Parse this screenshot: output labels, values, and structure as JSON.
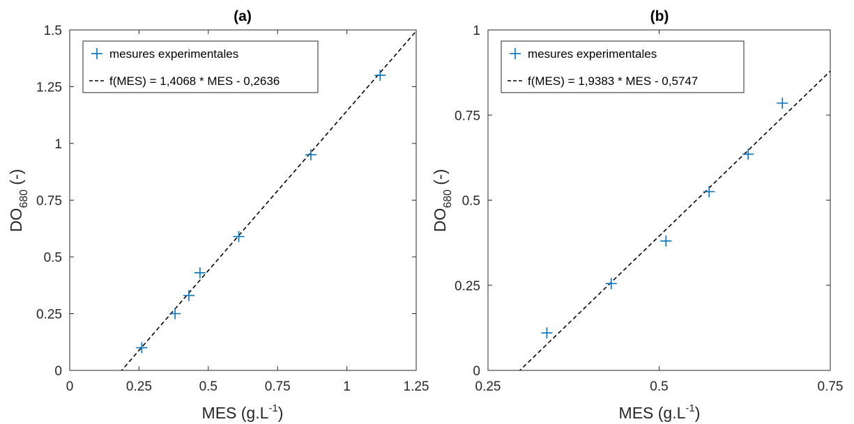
{
  "chart_data": [
    {
      "type": "scatter",
      "title": "(a)",
      "xlabel": "MES (g.L",
      "xlabel_sup": "-1",
      "xlabel_close": ")",
      "ylabel": "DO",
      "ylabel_sub": "680",
      "ylabel_suffix": " (-)",
      "xlim": [
        0,
        1.25
      ],
      "ylim": [
        0,
        1.5
      ],
      "xticks": [
        0,
        0.25,
        0.5,
        0.75,
        1,
        1.25
      ],
      "xtick_labels": [
        "0",
        "0.25",
        "0.5",
        "0.75",
        "1",
        "1.25"
      ],
      "yticks": [
        0,
        0.25,
        0.5,
        0.75,
        1,
        1.25,
        1.5
      ],
      "ytick_labels": [
        "0",
        "0.25",
        "0.5",
        "0.75",
        "1",
        "1.25",
        "1.5"
      ],
      "grid": false,
      "legend_position": "top-left",
      "series": [
        {
          "name": "mesures experimentales",
          "marker": "plus",
          "color": "#0072BD",
          "x": [
            0.26,
            0.38,
            0.43,
            0.47,
            0.61,
            0.87,
            1.12
          ],
          "y": [
            0.1,
            0.25,
            0.33,
            0.43,
            0.59,
            0.95,
            1.3
          ]
        },
        {
          "name": "f(MES) = 1,4068 * MES - 0,2636",
          "style": "dashed",
          "color": "#000000",
          "slope": 1.4068,
          "intercept": -0.2636
        }
      ]
    },
    {
      "type": "scatter",
      "title": "(b)",
      "xlabel": "MES (g.L",
      "xlabel_sup": "-1",
      "xlabel_close": ")",
      "ylabel": "DO",
      "ylabel_sub": "680",
      "ylabel_suffix": " (-)",
      "xlim": [
        0.25,
        0.75
      ],
      "ylim": [
        0,
        1
      ],
      "xticks": [
        0.25,
        0.5,
        0.75
      ],
      "xtick_labels": [
        "0.25",
        "0.5",
        "0.75"
      ],
      "yticks": [
        0,
        0.25,
        0.5,
        0.75,
        1
      ],
      "ytick_labels": [
        "0",
        "0.25",
        "0.5",
        "0.75",
        "1"
      ],
      "grid": false,
      "legend_position": "top-left",
      "series": [
        {
          "name": "mesures experimentales",
          "marker": "plus",
          "color": "#0072BD",
          "x": [
            0.336,
            0.43,
            0.51,
            0.573,
            0.63,
            0.68
          ],
          "y": [
            0.11,
            0.255,
            0.38,
            0.525,
            0.635,
            0.785
          ]
        },
        {
          "name": "f(MES) = 1,9383 * MES - 0,5747",
          "style": "dashed",
          "color": "#000000",
          "slope": 1.9383,
          "intercept": -0.5747
        }
      ]
    }
  ]
}
